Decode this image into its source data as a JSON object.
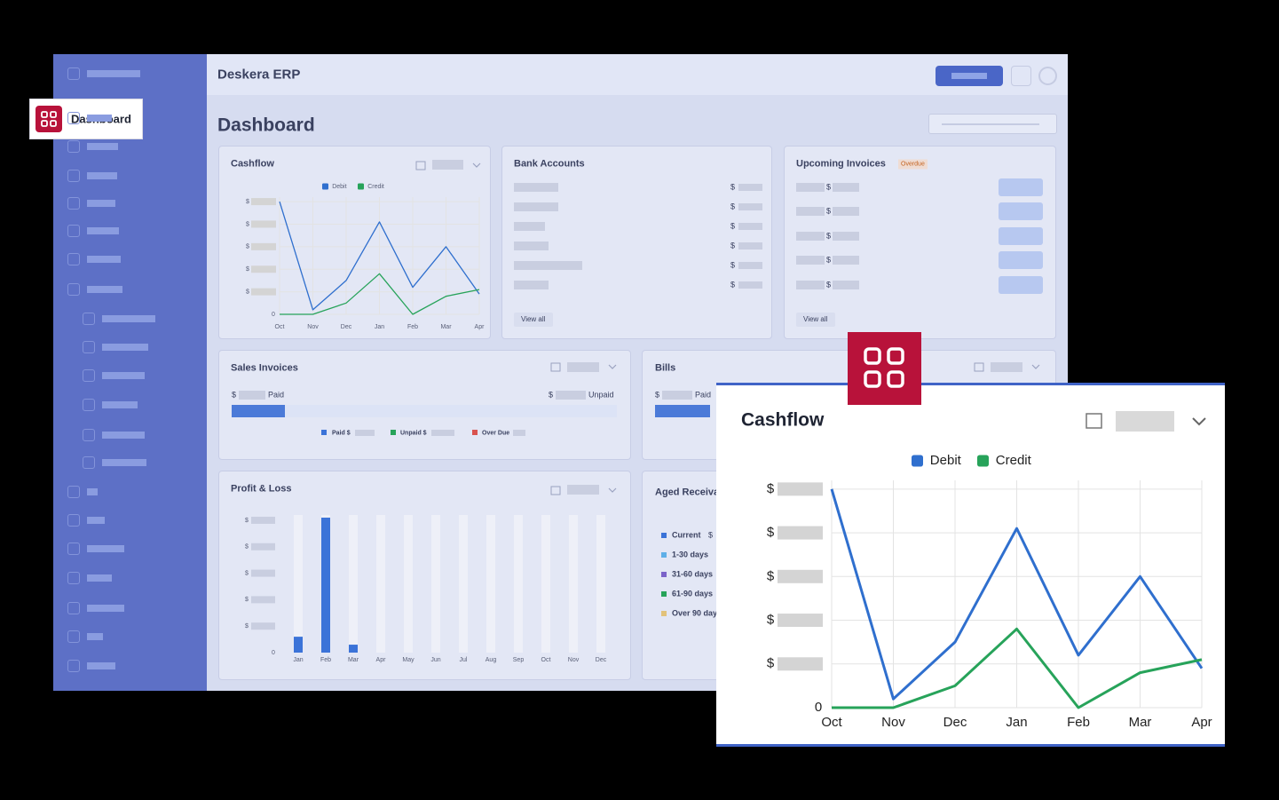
{
  "header": {
    "title": "Deskera ERP"
  },
  "sidebar": {
    "active_item": "Dashboard"
  },
  "page_title": "Dashboard",
  "chart_data": [
    {
      "type": "line",
      "title": "Cashflow",
      "categories": [
        "Oct",
        "Nov",
        "Dec",
        "Jan",
        "Feb",
        "Mar",
        "Apr"
      ],
      "series": [
        {
          "name": "Debit",
          "color": "#2f6fce",
          "values": [
            5,
            0.2,
            1.5,
            4.1,
            1.2,
            3,
            0.9
          ]
        },
        {
          "name": "Credit",
          "color": "#27a35a",
          "values": [
            0,
            0,
            0.5,
            1.8,
            0,
            0.8,
            1.1
          ]
        }
      ],
      "ylim": [
        0,
        5.2
      ],
      "yticks": [
        0,
        {
          "value": 1,
          "label": "$"
        },
        {
          "value": 2,
          "label": "$"
        },
        {
          "value": 3,
          "label": "$"
        },
        {
          "value": 4,
          "label": "$"
        },
        {
          "value": 5,
          "label": "$"
        }
      ],
      "grid": true
    },
    {
      "type": "bar",
      "title": "Profit & Loss",
      "categories": [
        "Jan",
        "Feb",
        "Mar",
        "Apr",
        "May",
        "Jun",
        "Jul",
        "Aug",
        "Sep",
        "Oct",
        "Nov",
        "Dec"
      ],
      "values": [
        0.6,
        5.1,
        0.3,
        0,
        0,
        0,
        0,
        0,
        0,
        0,
        0,
        0
      ],
      "color": "#3b73d8",
      "ylim": [
        0,
        5.2
      ],
      "yticks": [
        0,
        {
          "value": 1,
          "label": "$"
        },
        {
          "value": 2,
          "label": "$"
        },
        {
          "value": 3,
          "label": "$"
        },
        {
          "value": 4,
          "label": "$"
        },
        {
          "value": 5,
          "label": "$"
        }
      ]
    }
  ],
  "bank_accounts": {
    "title": "Bank Accounts",
    "currency": [
      "$",
      "$",
      "$",
      "$",
      "$",
      "$"
    ],
    "link": "View all"
  },
  "upcoming_invoices": {
    "title": "Upcoming Invoices",
    "badge": "Overdue",
    "currency": [
      "$",
      "$",
      "$",
      "$",
      "$"
    ],
    "link": "View all"
  },
  "sales_invoices": {
    "title": "Sales Invoices",
    "paid_currency": "$",
    "paid_label": "Paid",
    "unpaid_currency": "$",
    "unpaid_label": "Unpaid",
    "legend": [
      "Paid $",
      "Unpaid $",
      "Over Due"
    ]
  },
  "bills": {
    "title": "Bills",
    "paid_currency": "$",
    "paid_label": "Paid"
  },
  "aged_receivables": {
    "title": "Aged Receivables",
    "legend": [
      "Current",
      "1-30 days",
      "31-60 days",
      "61-90 days",
      "Over 90 days"
    ],
    "current_currency": "$"
  }
}
